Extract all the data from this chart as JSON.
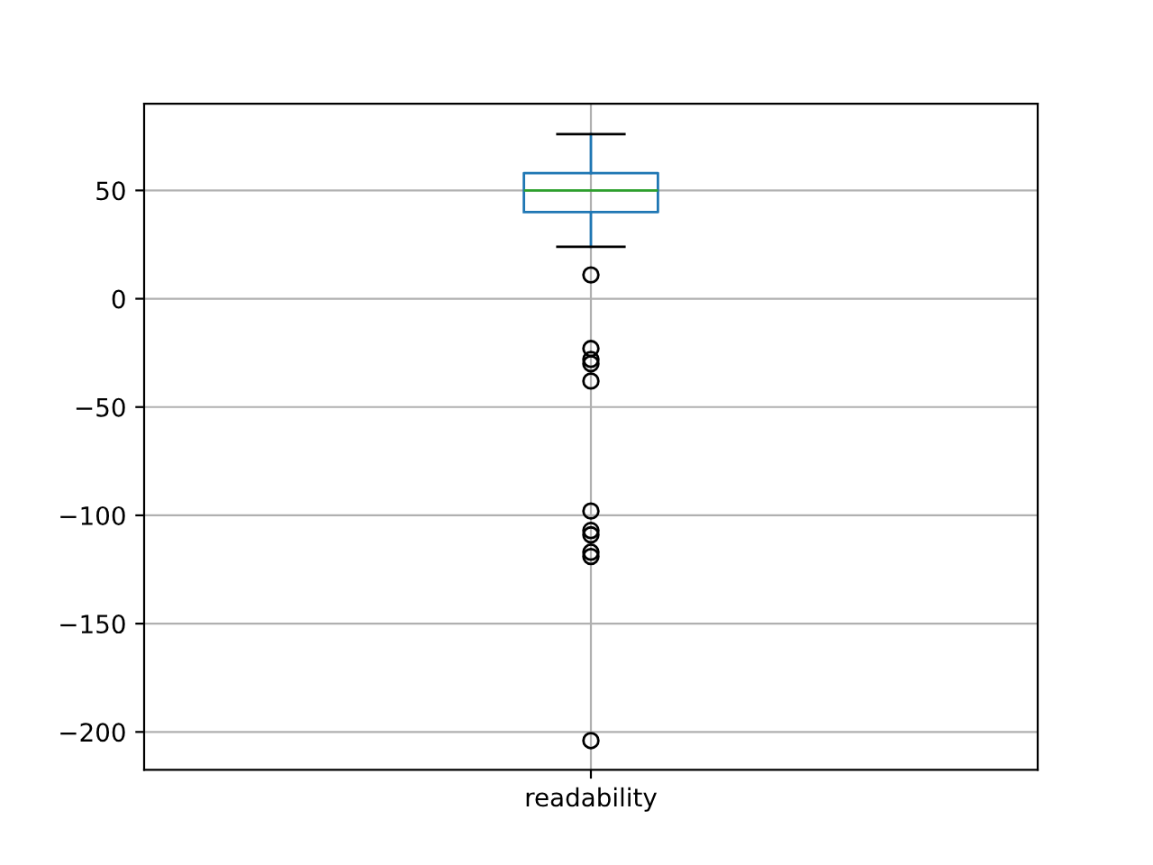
{
  "chart_data": {
    "type": "box",
    "categories": [
      "readability"
    ],
    "color": "#1f77b4",
    "boxes": [
      {
        "low": 24,
        "q1": 40,
        "median": 50,
        "q3": 58,
        "high": 76,
        "outliers": [
          11,
          -23,
          -28,
          -30,
          -38,
          -98,
          -107,
          -109,
          -117,
          -119,
          -204
        ]
      }
    ],
    "ylim": [
      -217.5,
      90
    ],
    "yticks": [
      -200,
      -150,
      -100,
      -50,
      0,
      50
    ],
    "grid": true,
    "marker": "circle"
  }
}
